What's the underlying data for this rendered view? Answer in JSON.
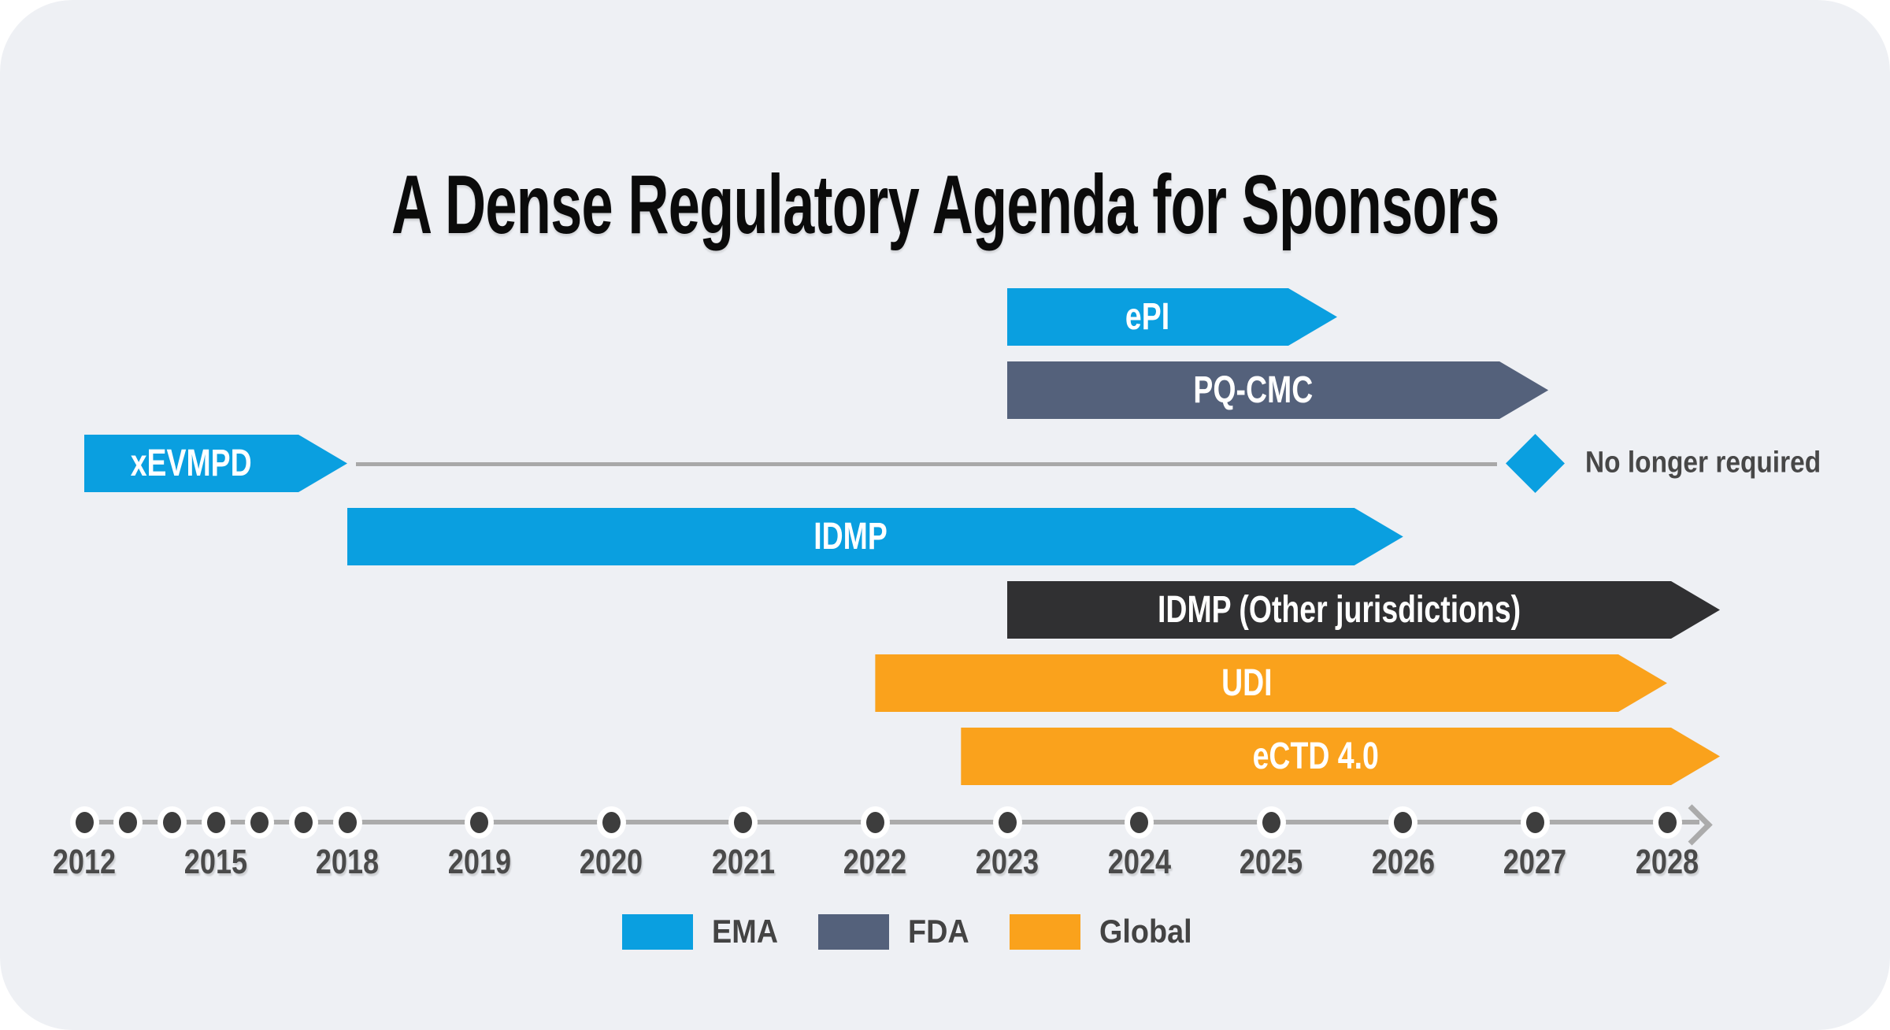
{
  "title": "A Dense Regulatory Agenda for Sponsors",
  "colors": {
    "ema": "#0a9fe0",
    "fda": "#54617b",
    "global": "#faa21c",
    "other": "#303032",
    "axis": "#ababab",
    "connector": "#a8a8a8",
    "dot": "#3d3d3d",
    "card_bg": "#eef0f4",
    "year_label": "#4a4a4a",
    "note_text": "#474747",
    "title_text": "#0b0b0b"
  },
  "chart_data": {
    "type": "bar",
    "subtype": "gantt-timeline",
    "title": "A Dense Regulatory Agenda for Sponsors",
    "xlabel": "",
    "ylabel": "",
    "x_axis": {
      "min": 2012,
      "max": 2028,
      "scale_note": "non-linear: 2012-2018 compressed, 2018-2028 expanded; arrow continues past 2028",
      "dot_years": [
        2012,
        2013,
        2014,
        2015,
        2016,
        2017,
        2018,
        2019,
        2020,
        2021,
        2022,
        2023,
        2024,
        2025,
        2026,
        2027,
        2028
      ],
      "label_years": [
        2012,
        2015,
        2018,
        2019,
        2020,
        2021,
        2022,
        2023,
        2024,
        2025,
        2026,
        2027,
        2028
      ]
    },
    "bars": [
      {
        "id": "epi",
        "label": "ePI",
        "authority": "EMA",
        "color_key": "ema",
        "start": 2023,
        "end": 2025.5
      },
      {
        "id": "pq-cmc",
        "label": "PQ-CMC",
        "authority": "FDA",
        "color_key": "fda",
        "start": 2023,
        "end": 2027.1
      },
      {
        "id": "xevmpd",
        "label": "xEVMPD",
        "authority": "EMA",
        "color_key": "ema",
        "start": 2012,
        "end": 2018,
        "marker": {
          "year": 2027,
          "shape": "diamond",
          "label": "No longer required"
        }
      },
      {
        "id": "idmp",
        "label": "IDMP",
        "authority": "EMA",
        "color_key": "ema",
        "start": 2018,
        "end": 2026
      },
      {
        "id": "idmp-other",
        "label": "IDMP (Other jurisdictions)",
        "authority": "Other jurisdictions",
        "color_key": "other",
        "start": 2023,
        "end": 2028.4
      },
      {
        "id": "udi",
        "label": "UDI",
        "authority": "Global",
        "color_key": "global",
        "start": 2022,
        "end": 2028
      },
      {
        "id": "ectd-40",
        "label": "eCTD 4.0",
        "authority": "Global",
        "color_key": "global",
        "start": 2022.65,
        "end": 2028.4
      }
    ],
    "legend_position": "bottom-center",
    "grid": false
  },
  "legend": {
    "items": [
      {
        "label": "EMA",
        "color_key": "ema"
      },
      {
        "label": "FDA",
        "color_key": "fda"
      },
      {
        "label": "Global",
        "color_key": "global"
      }
    ]
  }
}
